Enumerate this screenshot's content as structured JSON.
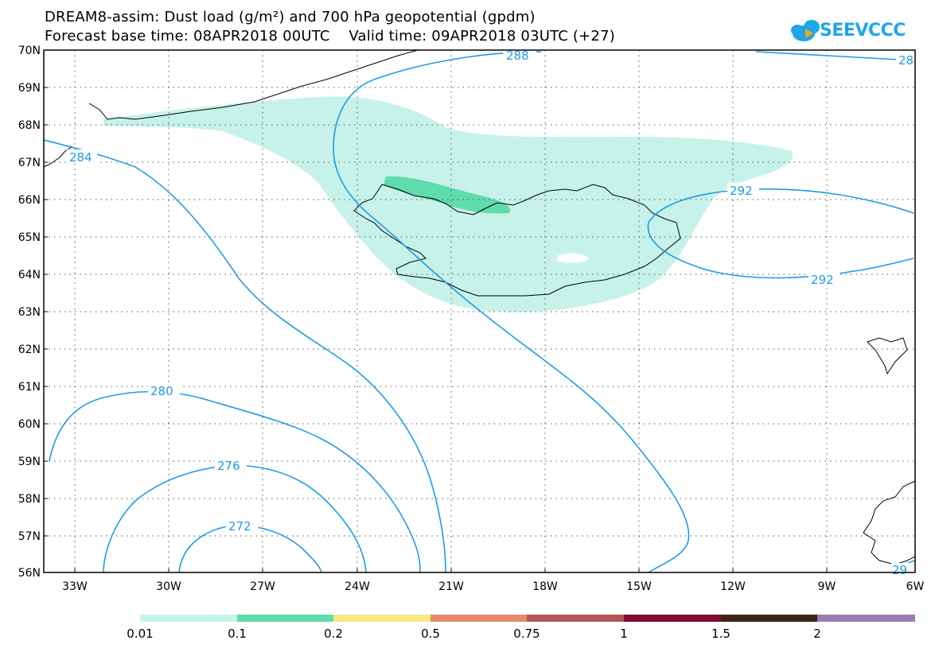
{
  "header": {
    "title": "DREAM8-assim: Dust load (g/m²) and 700 hPa geopotential (gpdm)",
    "subtitle": "Forecast base time: 08APR2018 00UTC    Valid time: 09APR2018 03UTC (+27)"
  },
  "logo": {
    "text": "SEEVCCC"
  },
  "map": {
    "lat_labels": [
      "70N",
      "69N",
      "68N",
      "67N",
      "66N",
      "65N",
      "64N",
      "63N",
      "62N",
      "61N",
      "60N",
      "59N",
      "58N",
      "57N",
      "56N"
    ],
    "lon_labels": [
      "33W",
      "30W",
      "27W",
      "24W",
      "21W",
      "18W",
      "15W",
      "12W",
      "9W",
      "6W"
    ],
    "contour_labels": [
      "288",
      "28",
      "284",
      "292",
      "292",
      "280",
      "276",
      "272",
      "29"
    ]
  },
  "colorbar": {
    "levels": [
      "0.01",
      "0.1",
      "0.2",
      "0.5",
      "0.75",
      "1",
      "1.5",
      "2"
    ],
    "colors": [
      "#c6f2ea",
      "#5fdcab",
      "#f9e983",
      "#e58b6b",
      "#b25556",
      "#810a33",
      "#3e2419",
      "#a07baf"
    ]
  },
  "colors": {
    "contour": "#1f9be6",
    "dust_light": "#c6f2ea",
    "dust_mid": "#5fdcab"
  }
}
